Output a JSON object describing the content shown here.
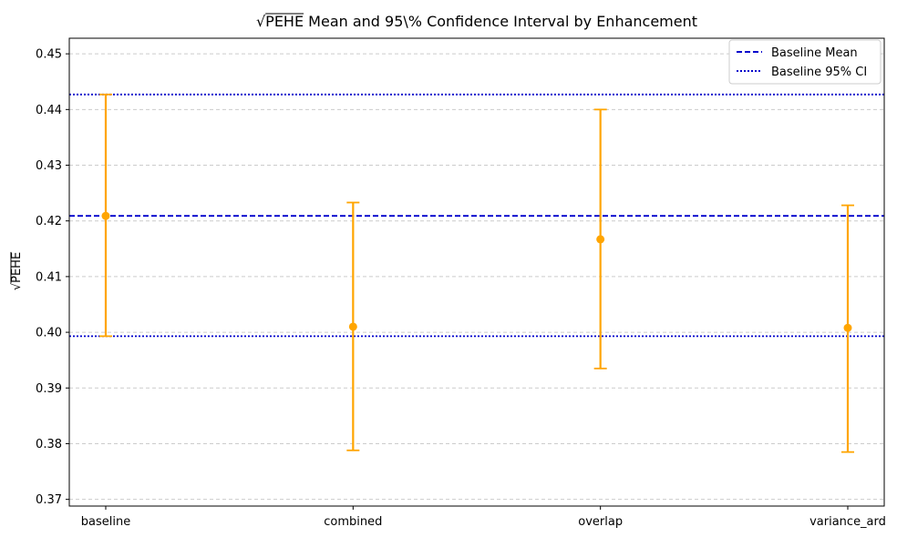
{
  "chart_data": {
    "type": "errorbar",
    "title_radical": "√",
    "title_symbol": "PEHE",
    "title_rest": " Mean and 95\\% Confidence Interval by Enhancement",
    "ylabel_radical": "√",
    "ylabel_symbol": "PEHE",
    "xlabel": "",
    "categories": [
      "baseline",
      "combined",
      "overlap",
      "variance_ard"
    ],
    "means": [
      0.4209,
      0.401,
      0.4167,
      0.4008
    ],
    "ci_lower": [
      0.3993,
      0.3788,
      0.3935,
      0.3785
    ],
    "ci_upper": [
      0.4427,
      0.4233,
      0.44,
      0.4228
    ],
    "baseline_mean": 0.4209,
    "baseline_ci": [
      0.3993,
      0.4427
    ],
    "ylim": [
      0.3688,
      0.4528
    ],
    "yticks": [
      0.37,
      0.38,
      0.39,
      0.4,
      0.41,
      0.42,
      0.43,
      0.44,
      0.45
    ],
    "ytick_labels": [
      "0.37",
      "0.38",
      "0.39",
      "0.40",
      "0.41",
      "0.42",
      "0.43",
      "0.44",
      "0.45"
    ],
    "grid": "y-dashed",
    "legend_position": "top-right",
    "legend": [
      {
        "label": "Baseline Mean",
        "style": "dashed",
        "color": "#0000cc"
      },
      {
        "label": "Baseline 95% CI",
        "style": "dotted",
        "color": "#0000cc"
      }
    ],
    "point_color": "#ffa500",
    "reference_color": "#0000cc"
  }
}
